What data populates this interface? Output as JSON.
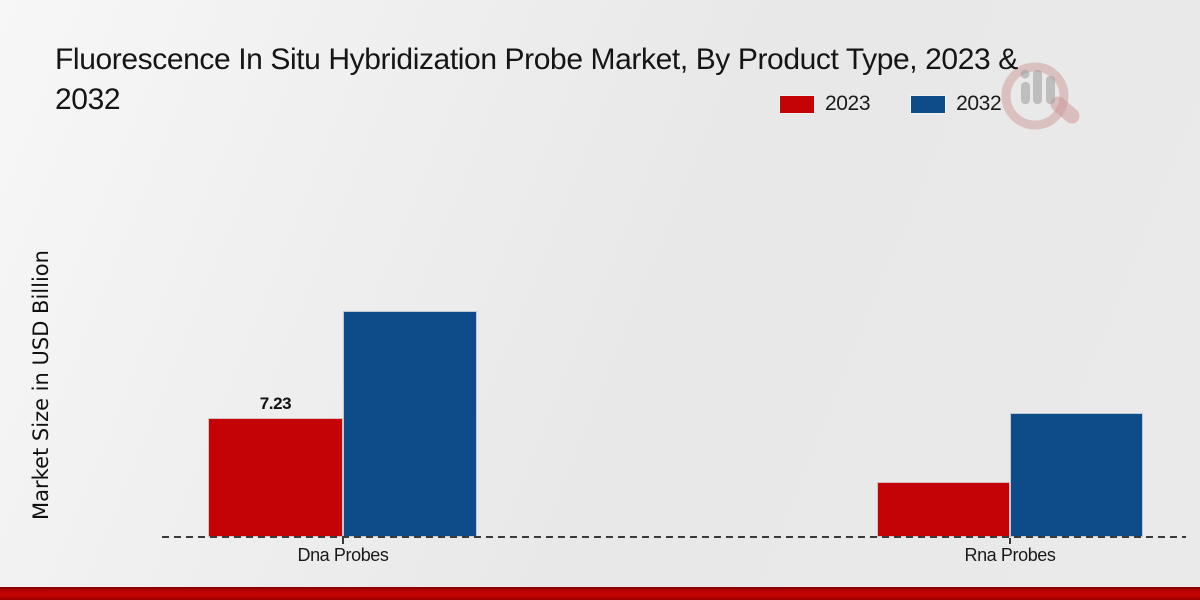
{
  "header": {
    "title_line1": "Fluorescence In Situ Hybridization Probe Market, By Product Type, 2023 &",
    "title_line2": "2032"
  },
  "legend": {
    "items": [
      {
        "label": "2023",
        "color": "#c40404"
      },
      {
        "label": "2032",
        "color": "#0d4c88"
      }
    ]
  },
  "y_axis": {
    "label": "Market Size in USD Billion"
  },
  "watermark": {
    "icon": "magnifier-bar-chart-logo"
  },
  "footer": {
    "accent_color": "#c40404"
  },
  "chart_data": {
    "type": "bar",
    "title": "Fluorescence In Situ Hybridization Probe Market, By Product Type, 2023 & 2032",
    "categories": [
      "Dna Probes",
      "Rna Probes"
    ],
    "series": [
      {
        "name": "2023",
        "color": "#c40404",
        "values": [
          7.23,
          3.35
        ]
      },
      {
        "name": "2032",
        "color": "#0d4c88",
        "values": [
          13.73,
          7.54
        ]
      }
    ],
    "data_labels": [
      {
        "category": "Dna Probes",
        "series": "2023",
        "text": "7.23"
      }
    ],
    "xlabel": "",
    "ylabel": "Market Size in USD Billion",
    "ylim": [
      0,
      16
    ],
    "grid": false,
    "legend_position": "top-right",
    "baseline_style": "dashed"
  }
}
